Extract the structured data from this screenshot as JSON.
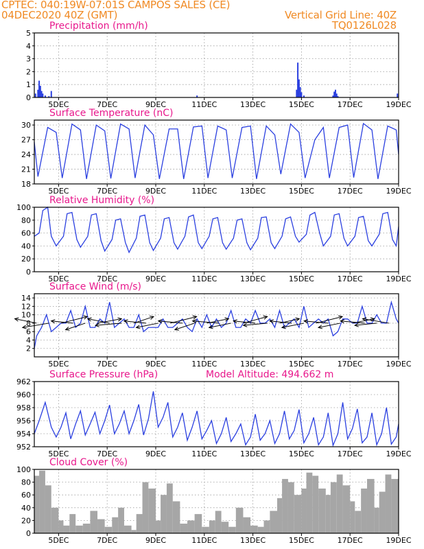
{
  "header": {
    "line1": "CPTEC:   040:19W-07:01S   CAMPOS SALES (CE)",
    "line2": "04DEC2020 40Z (GMT)",
    "grid_line": "Vertical Grid Line: 40Z",
    "code": "TQ0126L028"
  },
  "colors": {
    "header": "#f08a24",
    "title": "#e8188c",
    "series": "#2a3fe0",
    "cloud": "#a6a6a6",
    "grid": "#9a9a9a"
  },
  "x_ticks": [
    "5DEC",
    "7DEC",
    "9DEC",
    "11DEC",
    "13DEC",
    "15DEC",
    "17DEC",
    "19DEC"
  ],
  "chart_data": [
    {
      "type": "bar",
      "title": "Precipitation (mm/h)",
      "ylim": [
        0,
        5
      ],
      "yticks": [
        "0",
        "1",
        "2",
        "3",
        "4",
        "5"
      ],
      "x_day_range": [
        4.0,
        19.0
      ],
      "x": [
        4.05,
        4.15,
        4.2,
        4.25,
        4.3,
        4.35,
        4.45,
        4.6,
        4.7,
        10.7,
        14.8,
        14.85,
        14.9,
        14.95,
        15.0,
        15.1,
        16.3,
        16.35,
        16.4,
        16.45,
        16.5,
        18.95
      ],
      "values": [
        0.3,
        0.6,
        1.3,
        0.9,
        0.5,
        0.3,
        0.15,
        0.1,
        0.5,
        0.15,
        0.6,
        2.7,
        1.4,
        0.8,
        0.4,
        0.15,
        0.15,
        0.45,
        0.6,
        0.3,
        0.1,
        0.3
      ]
    },
    {
      "type": "line",
      "title": "Surface Temperature (nC)",
      "ylim": [
        18,
        31
      ],
      "yticks": [
        "18",
        "21",
        "24",
        "27",
        "30"
      ],
      "x_day_range": [
        4.0,
        19.0
      ],
      "x": [
        4.0,
        4.15,
        4.55,
        4.9,
        5.15,
        5.55,
        5.9,
        6.15,
        6.55,
        6.9,
        7.15,
        7.55,
        7.9,
        8.15,
        8.55,
        8.9,
        9.15,
        9.55,
        9.9,
        10.15,
        10.55,
        10.9,
        11.15,
        11.55,
        11.9,
        12.15,
        12.55,
        12.9,
        13.15,
        13.55,
        13.9,
        14.15,
        14.55,
        14.9,
        15.15,
        15.55,
        15.9,
        16.15,
        16.55,
        16.9,
        17.15,
        17.55,
        17.9,
        18.15,
        18.55,
        18.9,
        19.0
      ],
      "values": [
        26.5,
        19.5,
        29.5,
        28.5,
        19.2,
        30.2,
        29.0,
        19.0,
        30.0,
        28.8,
        19.1,
        30.2,
        29.2,
        19.2,
        30.0,
        28.0,
        19.0,
        29.2,
        29.2,
        19.0,
        29.6,
        29.8,
        19.2,
        29.8,
        29.0,
        19.2,
        29.5,
        29.8,
        19.0,
        29.8,
        28.0,
        20.0,
        30.2,
        28.5,
        19.2,
        27.0,
        29.5,
        19.2,
        29.5,
        30.0,
        19.3,
        30.3,
        29.0,
        19.0,
        29.8,
        29.0,
        24.0
      ]
    },
    {
      "type": "line",
      "title": "Relative Humidity (%)",
      "ylim": [
        0,
        100
      ],
      "yticks": [
        "0",
        "20",
        "40",
        "60",
        "80",
        "100"
      ],
      "x_day_range": [
        4.0,
        19.0
      ],
      "x": [
        4.0,
        4.2,
        4.35,
        4.55,
        4.7,
        4.9,
        5.2,
        5.35,
        5.55,
        5.75,
        5.9,
        6.2,
        6.35,
        6.55,
        6.75,
        6.9,
        7.2,
        7.35,
        7.55,
        7.75,
        7.9,
        8.2,
        8.35,
        8.55,
        8.75,
        8.9,
        9.2,
        9.35,
        9.55,
        9.75,
        9.9,
        10.2,
        10.35,
        10.55,
        10.75,
        10.9,
        11.2,
        11.35,
        11.55,
        11.75,
        11.9,
        12.2,
        12.35,
        12.55,
        12.75,
        12.9,
        13.2,
        13.35,
        13.55,
        13.75,
        13.9,
        14.2,
        14.35,
        14.55,
        14.75,
        14.9,
        15.2,
        15.35,
        15.55,
        15.75,
        15.9,
        16.2,
        16.35,
        16.55,
        16.75,
        16.9,
        17.2,
        17.35,
        17.55,
        17.75,
        17.9,
        18.2,
        18.35,
        18.55,
        18.75,
        18.9,
        19.0
      ],
      "values": [
        55,
        60,
        95,
        100,
        55,
        40,
        55,
        90,
        92,
        50,
        38,
        55,
        88,
        90,
        48,
        32,
        50,
        80,
        82,
        45,
        30,
        52,
        86,
        88,
        45,
        33,
        52,
        82,
        84,
        45,
        35,
        55,
        85,
        88,
        45,
        36,
        55,
        82,
        84,
        45,
        35,
        52,
        80,
        82,
        45,
        34,
        52,
        84,
        85,
        45,
        36,
        55,
        82,
        85,
        55,
        46,
        58,
        88,
        92,
        60,
        40,
        55,
        88,
        90,
        52,
        40,
        55,
        84,
        86,
        48,
        40,
        58,
        90,
        92,
        50,
        40,
        70
      ]
    },
    {
      "type": "line",
      "title": "Surface Wind (m/s)",
      "ylim": [
        0,
        15
      ],
      "yticks": [
        "2",
        "4",
        "6",
        "8",
        "10",
        "12",
        "14"
      ],
      "x_day_range": [
        4.0,
        19.0
      ],
      "x": [
        4.0,
        4.1,
        4.3,
        4.5,
        4.7,
        4.9,
        5.1,
        5.3,
        5.5,
        5.7,
        5.9,
        6.1,
        6.3,
        6.5,
        6.7,
        6.9,
        7.1,
        7.3,
        7.5,
        7.7,
        7.9,
        8.1,
        8.3,
        8.5,
        8.7,
        8.9,
        9.1,
        9.3,
        9.5,
        9.7,
        9.9,
        10.1,
        10.3,
        10.5,
        10.7,
        10.9,
        11.1,
        11.3,
        11.5,
        11.7,
        11.9,
        12.1,
        12.3,
        12.5,
        12.7,
        12.9,
        13.1,
        13.3,
        13.5,
        13.7,
        13.9,
        14.1,
        14.3,
        14.5,
        14.7,
        14.9,
        15.1,
        15.3,
        15.5,
        15.7,
        15.9,
        16.1,
        16.3,
        16.5,
        16.7,
        16.9,
        17.1,
        17.3,
        17.5,
        17.7,
        17.9,
        18.1,
        18.3,
        18.5,
        18.7,
        18.9,
        19.0
      ],
      "values": [
        2,
        5,
        7,
        10,
        6,
        7,
        8,
        8,
        11,
        7,
        8,
        12,
        7,
        7,
        9,
        8,
        13,
        7,
        8,
        9,
        7,
        7,
        10,
        6,
        7,
        7,
        7,
        9,
        7,
        7,
        8,
        9,
        7,
        6,
        9,
        7,
        10,
        7,
        9,
        7,
        8,
        11,
        7,
        7,
        9,
        8,
        11,
        8,
        8,
        9,
        7,
        11,
        7,
        8,
        9,
        7,
        12,
        7,
        8,
        9,
        8,
        9,
        5,
        6,
        9,
        9,
        8,
        8,
        12,
        8,
        8,
        10,
        8,
        8,
        13,
        9,
        8
      ]
    },
    {
      "type": "line",
      "title": "Surface Pressure (hPa)",
      "annotation": "Model Altitude: 494.662 m",
      "ylim": [
        952,
        962
      ],
      "yticks": [
        "952",
        "954",
        "956",
        "958",
        "960",
        "962"
      ],
      "x_day_range": [
        4.0,
        19.0
      ],
      "x": [
        4.0,
        4.2,
        4.45,
        4.7,
        4.9,
        5.1,
        5.3,
        5.5,
        5.7,
        5.9,
        6.1,
        6.3,
        6.5,
        6.7,
        6.9,
        7.1,
        7.3,
        7.5,
        7.7,
        7.9,
        8.1,
        8.3,
        8.5,
        8.7,
        8.9,
        9.1,
        9.3,
        9.5,
        9.7,
        9.9,
        10.1,
        10.3,
        10.5,
        10.7,
        10.9,
        11.1,
        11.3,
        11.5,
        11.7,
        11.9,
        12.1,
        12.3,
        12.5,
        12.7,
        12.9,
        13.1,
        13.3,
        13.5,
        13.7,
        13.9,
        14.1,
        14.3,
        14.5,
        14.7,
        14.9,
        15.1,
        15.3,
        15.5,
        15.7,
        15.9,
        16.1,
        16.3,
        16.5,
        16.7,
        16.9,
        17.1,
        17.3,
        17.5,
        17.7,
        17.9,
        18.1,
        18.3,
        18.5,
        18.7,
        18.9,
        19.0
      ],
      "values": [
        954,
        956,
        958.8,
        955,
        953.5,
        955,
        957.2,
        953.2,
        955.5,
        957.5,
        953.8,
        955.5,
        957.3,
        954,
        956,
        958.4,
        954,
        955.5,
        957.5,
        954,
        956,
        958.5,
        953.8,
        956.3,
        960.5,
        955,
        956.5,
        958.8,
        953.5,
        955,
        957.2,
        953,
        955,
        957.5,
        953.2,
        954.5,
        956,
        952.5,
        954,
        956.5,
        952.8,
        954,
        955.5,
        952.3,
        953.5,
        957,
        953,
        954,
        956,
        952.5,
        954,
        957.5,
        953.2,
        954.5,
        957.7,
        952.6,
        954,
        956.5,
        952.3,
        953.5,
        957.2,
        952.2,
        954,
        958.8,
        953.2,
        954.8,
        957.8,
        952.6,
        953.5,
        957.2,
        952.3,
        954,
        958,
        952.4,
        953.5,
        955.5
      ]
    },
    {
      "type": "area",
      "title": "Cloud Cover (%)",
      "ylim": [
        0,
        100
      ],
      "yticks": [
        "0",
        "20",
        "40",
        "60",
        "80",
        "100"
      ],
      "x_day_range": [
        4.0,
        19.0
      ],
      "x": [
        4.0,
        4.2,
        4.45,
        4.7,
        5.0,
        5.2,
        5.45,
        5.7,
        6.0,
        6.3,
        6.6,
        6.9,
        7.2,
        7.45,
        7.7,
        8.0,
        8.2,
        8.45,
        8.7,
        9.0,
        9.2,
        9.45,
        9.7,
        10.0,
        10.3,
        10.6,
        10.9,
        11.2,
        11.45,
        11.7,
        12.0,
        12.3,
        12.6,
        12.9,
        13.2,
        13.45,
        13.7,
        14.0,
        14.2,
        14.45,
        14.7,
        15.0,
        15.2,
        15.45,
        15.7,
        16.0,
        16.2,
        16.45,
        16.7,
        17.0,
        17.2,
        17.45,
        17.7,
        18.0,
        18.2,
        18.45,
        18.7,
        19.0
      ],
      "values": [
        90,
        98,
        75,
        40,
        20,
        12,
        30,
        12,
        15,
        35,
        22,
        10,
        25,
        40,
        12,
        5,
        30,
        80,
        70,
        20,
        60,
        78,
        50,
        15,
        20,
        30,
        10,
        20,
        35,
        18,
        10,
        40,
        25,
        12,
        10,
        20,
        35,
        55,
        85,
        80,
        60,
        70,
        95,
        90,
        70,
        60,
        80,
        92,
        75,
        50,
        35,
        70,
        85,
        40,
        65,
        92,
        85,
        80
      ]
    },
    {
      "type": "vector",
      "title": "Surface Wind (m/s) vectors",
      "x": [
        4.1,
        4.6,
        5.1,
        5.6,
        6.1,
        6.6,
        7.1,
        7.6,
        8.1,
        8.6,
        9.1,
        9.6,
        10.1,
        10.6,
        11.1,
        11.6,
        12.1,
        12.6,
        13.1,
        13.6,
        14.1,
        14.6,
        15.1,
        15.6,
        16.1,
        16.6,
        17.1,
        17.6,
        18.1,
        18.6
      ],
      "u": [
        -1,
        -1.2,
        1.2,
        -1,
        -0.9,
        1.1,
        -1,
        -1.2,
        0.9,
        -1,
        -1,
        1.2,
        -1.1,
        -0.9,
        1,
        -1.2,
        -1,
        1.1,
        -1,
        -1.1,
        0.9,
        -1,
        -1,
        1.2,
        -1.1,
        -1,
        1,
        -1.1,
        -1,
        -1.2
      ],
      "v": [
        0.2,
        -0.2,
        0.3,
        0.1,
        -0.3,
        0.2,
        0.2,
        -0.1,
        0.3,
        0.1,
        -0.2,
        0.3,
        0.1,
        -0.3,
        0.2,
        0.1,
        -0.2,
        0.3,
        0.1,
        -0.1,
        0.2,
        0.1,
        -0.2,
        0.3,
        0.1,
        -0.2,
        0.2,
        0.1,
        -0.1,
        0.2
      ]
    }
  ]
}
